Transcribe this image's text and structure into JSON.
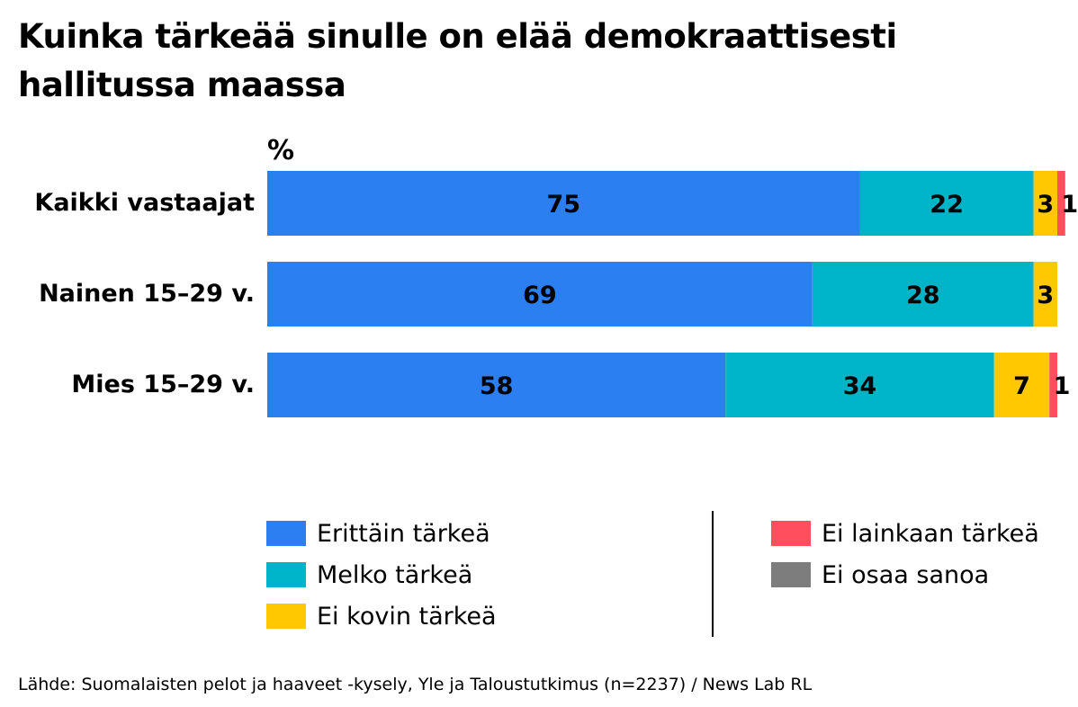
{
  "chart_data": {
    "type": "bar",
    "orientation": "horizontal",
    "stacked": true,
    "title": "Kuinka tärkeää sinulle on elää demokraattisesti hallitussa maassa",
    "unit_label": "%",
    "categories": [
      "Kaikki vastaajat",
      "Nainen 15–29 v.",
      "Mies 15–29 v."
    ],
    "xlim": [
      0,
      100
    ],
    "series": [
      {
        "name": "Erittäin tärkeä",
        "color": "#2b7ff0",
        "values": [
          75,
          69,
          58
        ]
      },
      {
        "name": "Melko tärkeä",
        "color": "#00b4c8",
        "values": [
          22,
          28,
          34
        ]
      },
      {
        "name": "Ei kovin tärkeä",
        "color": "#ffc800",
        "values": [
          3,
          3,
          7
        ]
      },
      {
        "name": "Ei lainkaan tärkeä",
        "color": "#ff4f5e",
        "values": [
          1,
          0,
          1
        ]
      },
      {
        "name": "Ei osaa sanoa",
        "color": "#7d7d7d",
        "values": [
          0,
          0,
          0
        ]
      }
    ],
    "source": "Lähde: Suomalaisten pelot ja haaveet -kysely, Yle ja Taloustutkimus (n=2237) / News Lab RL"
  }
}
